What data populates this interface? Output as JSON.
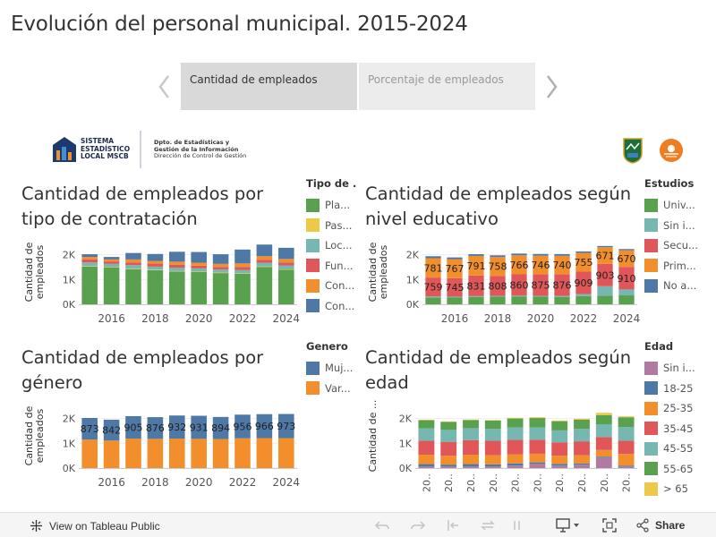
{
  "page": {
    "title": "Evolución del personal municipal. 2015-2024"
  },
  "tabs": {
    "active": "Cantidad de empleados",
    "inactive": "Porcentaje de empleados"
  },
  "logo": {
    "title_lines": [
      "SISTEMA",
      "ESTADÍSTICO",
      "LOCAL MSCB"
    ],
    "dept_lines": [
      "Dpto. de Estadísticas y",
      "Gestión de la Información",
      "Dirección de Control de Gestión"
    ]
  },
  "colors": {
    "green": "#59a14f",
    "yellow": "#edc948",
    "teal": "#76b7b2",
    "red": "#e15759",
    "orange": "#f28e2b",
    "blue": "#4e79a7",
    "pink": "#b07aa1",
    "grey": "#bab0ac"
  },
  "charts": {
    "contratacion": {
      "title": "Cantidad de empleados por tipo de contratación",
      "ylabel": "Cantidad de empleados",
      "legend_title": "Tipo de ...",
      "legend": [
        {
          "label": "Pla...",
          "color": "#59a14f"
        },
        {
          "label": "Pas...",
          "color": "#edc948"
        },
        {
          "label": "Loc...",
          "color": "#76b7b2"
        },
        {
          "label": "Fun...",
          "color": "#e15759"
        },
        {
          "label": "Con...",
          "color": "#f28e2b"
        },
        {
          "label": "Con...",
          "color": "#4e79a7"
        }
      ]
    },
    "educacion": {
      "title": "Cantidad de empleados según nivel educativo",
      "ylabel": "Cantidad de empleados",
      "legend_title": "Estudios",
      "legend": [
        {
          "label": "Univ...",
          "color": "#59a14f"
        },
        {
          "label": "Sin i...",
          "color": "#76b7b2"
        },
        {
          "label": "Secu...",
          "color": "#e15759"
        },
        {
          "label": "Prim...",
          "color": "#f28e2b"
        },
        {
          "label": "No a...",
          "color": "#4e79a7"
        }
      ]
    },
    "genero": {
      "title": "Cantidad de empleados por género",
      "ylabel": "Cantidad de empleados",
      "legend_title": "Genero",
      "legend": [
        {
          "label": "Muj...",
          "color": "#4e79a7"
        },
        {
          "label": "Var...",
          "color": "#f28e2b"
        }
      ]
    },
    "edad": {
      "title": "Cantidad de empleados según edad",
      "ylabel": "Cantidad de ...",
      "legend_title": "Edad",
      "legend": [
        {
          "label": "Sin i...",
          "color": "#b07aa1"
        },
        {
          "label": "18-25",
          "color": "#4e79a7"
        },
        {
          "label": "25-35",
          "color": "#f28e2b"
        },
        {
          "label": "35-45",
          "color": "#e15759"
        },
        {
          "label": "45-55",
          "color": "#76b7b2"
        },
        {
          "label": "55-65",
          "color": "#59a14f"
        },
        {
          "label": "> 65",
          "color": "#edc948"
        }
      ]
    }
  },
  "chart_data": [
    {
      "id": "contratacion",
      "type": "bar",
      "stacked": true,
      "title": "Cantidad de empleados por tipo de contratación",
      "ylabel": "Cantidad de empleados",
      "categories": [
        2015,
        2016,
        2017,
        2018,
        2019,
        2020,
        2021,
        2022,
        2023,
        2024
      ],
      "x_ticks": [
        "2016",
        "2018",
        "2020",
        "2022",
        "2024"
      ],
      "y_ticks": [
        "0K",
        "1K",
        "2K"
      ],
      "ylim": [
        0,
        2600
      ],
      "series": [
        {
          "name": "Pla...",
          "color": "#59a14f",
          "values": [
            1520,
            1480,
            1420,
            1380,
            1320,
            1300,
            1260,
            1230,
            1510,
            1390
          ]
        },
        {
          "name": "Pas...",
          "color": "#edc948",
          "values": [
            20,
            20,
            20,
            20,
            20,
            20,
            20,
            20,
            20,
            20
          ]
        },
        {
          "name": "Loc...",
          "color": "#76b7b2",
          "values": [
            150,
            130,
            140,
            120,
            140,
            130,
            130,
            140,
            150,
            160
          ]
        },
        {
          "name": "Fun...",
          "color": "#e15759",
          "values": [
            120,
            100,
            110,
            120,
            120,
            110,
            100,
            120,
            110,
            120
          ]
        },
        {
          "name": "Con...",
          "color": "#f28e2b",
          "values": [
            100,
            80,
            120,
            110,
            120,
            120,
            120,
            140,
            150,
            140
          ]
        },
        {
          "name": "Con...",
          "color": "#4e79a7",
          "values": [
            110,
            100,
            260,
            280,
            400,
            430,
            390,
            560,
            470,
            450
          ]
        }
      ]
    },
    {
      "id": "educacion",
      "type": "bar",
      "stacked": true,
      "title": "Cantidad de empleados según nivel educativo",
      "ylabel": "Cantidad de empleados",
      "categories": [
        2015,
        2016,
        2017,
        2018,
        2019,
        2020,
        2021,
        2022,
        2023,
        2024
      ],
      "x_ticks": [
        "2016",
        "2018",
        "2020",
        "2022",
        "2024"
      ],
      "y_ticks": [
        "0K",
        "1K",
        "2K"
      ],
      "ylim": [
        0,
        2600
      ],
      "series": [
        {
          "name": "Univ...",
          "color": "#59a14f",
          "values": [
            280,
            270,
            300,
            310,
            320,
            310,
            300,
            330,
            350,
            360
          ]
        },
        {
          "name": "Sin i...",
          "color": "#76b7b2",
          "values": [
            40,
            40,
            30,
            30,
            30,
            30,
            40,
            80,
            380,
            240
          ]
        },
        {
          "name": "Secu...",
          "color": "#e15759",
          "values": [
            759,
            745,
            831,
            808,
            860,
            875,
            876,
            909,
            903,
            910
          ],
          "labels": true
        },
        {
          "name": "Prim...",
          "color": "#f28e2b",
          "values": [
            781,
            767,
            791,
            758,
            766,
            746,
            740,
            755,
            671,
            670
          ],
          "labels": true
        },
        {
          "name": "No a...",
          "color": "#4e79a7",
          "values": [
            80,
            70,
            70,
            70,
            70,
            70,
            70,
            60,
            50,
            50
          ]
        }
      ]
    },
    {
      "id": "genero",
      "type": "bar",
      "stacked": true,
      "title": "Cantidad de empleados por género",
      "ylabel": "Cantidad de empleados",
      "categories": [
        2015,
        2016,
        2017,
        2018,
        2019,
        2020,
        2021,
        2022,
        2023,
        2024
      ],
      "x_ticks": [
        "2016",
        "2018",
        "2020",
        "2022",
        "2024"
      ],
      "y_ticks": [
        "0K",
        "1K",
        "2K"
      ],
      "ylim": [
        0,
        2600
      ],
      "series": [
        {
          "name": "Var...",
          "color": "#f28e2b",
          "values": [
            1150,
            1110,
            1190,
            1180,
            1190,
            1180,
            1170,
            1200,
            1210,
            1210
          ]
        },
        {
          "name": "Muj...",
          "color": "#4e79a7",
          "values": [
            873,
            842,
            905,
            876,
            932,
            931,
            894,
            956,
            966,
            973
          ],
          "labels": true
        }
      ]
    },
    {
      "id": "edad",
      "type": "bar",
      "stacked": true,
      "title": "Cantidad de empleados según edad",
      "ylabel": "Cantidad de ...",
      "categories": [
        2015,
        2016,
        2017,
        2018,
        2019,
        2020,
        2021,
        2022,
        2023,
        2024
      ],
      "x_ticks": [
        "20..",
        "20..",
        "20..",
        "20..",
        "20..",
        "20..",
        "20..",
        "20..",
        "20..",
        "20.."
      ],
      "y_ticks": [
        "0K",
        "1K",
        "2K"
      ],
      "ylim": [
        0,
        2600
      ],
      "series": [
        {
          "name": "Sin i...",
          "color": "#b07aa1",
          "values": [
            60,
            60,
            60,
            60,
            100,
            180,
            100,
            140,
            420,
            60
          ]
        },
        {
          "name": "18-25",
          "color": "#4e79a7",
          "values": [
            100,
            80,
            100,
            90,
            90,
            50,
            70,
            50,
            40,
            40
          ]
        },
        {
          "name": "25-35",
          "color": "#f28e2b",
          "values": [
            380,
            360,
            380,
            370,
            370,
            350,
            330,
            330,
            270,
            470
          ]
        },
        {
          "name": "35-45",
          "color": "#e15759",
          "values": [
            560,
            560,
            590,
            580,
            580,
            560,
            540,
            560,
            520,
            530
          ]
        },
        {
          "name": "45-55",
          "color": "#76b7b2",
          "values": [
            500,
            480,
            480,
            480,
            500,
            500,
            480,
            500,
            520,
            560
          ]
        },
        {
          "name": "55-65",
          "color": "#59a14f",
          "values": [
            330,
            320,
            330,
            340,
            360,
            380,
            370,
            370,
            370,
            390
          ]
        },
        {
          "name": "> 65",
          "color": "#edc948",
          "values": [
            20,
            20,
            20,
            20,
            30,
            30,
            30,
            40,
            90,
            40
          ]
        }
      ]
    }
  ],
  "toolbar": {
    "view_on_label": "View on Tableau Public",
    "share_label": "Share"
  }
}
